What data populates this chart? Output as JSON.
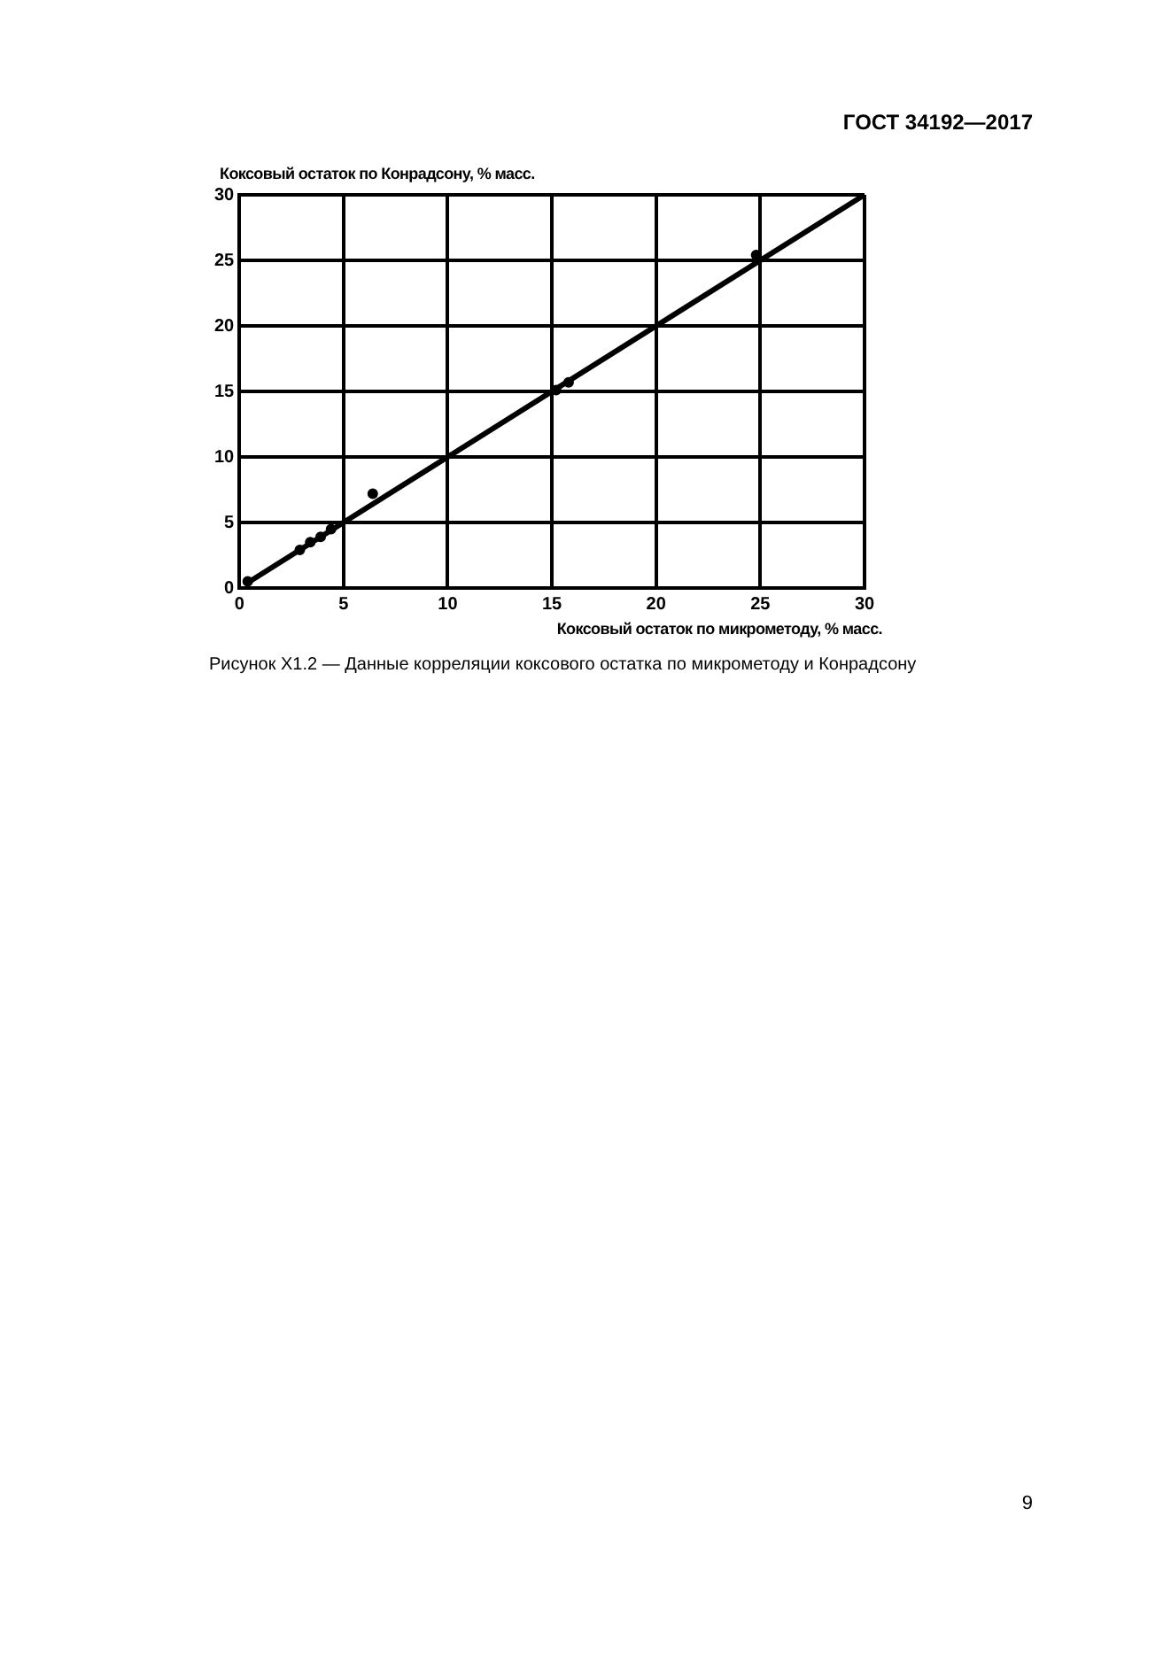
{
  "chart_data": {
    "type": "scatter",
    "xlabel": "Коксовый остаток по микрометоду, % масс.",
    "ylabel": "Коксовый остаток по Конрадсону, % масс.",
    "annotations": [
      "ГОСТ 34192—2017",
      "Рисунок X1.2 — Данные корреляции коксового остатка по микрометоду и Конрадсону",
      "9"
    ],
    "series": [
      {
        "color": "#000000",
        "x": [
          0.4,
          2.9,
          3.4,
          3.9,
          4.4,
          6.4,
          15.2,
          15.8,
          24.8
        ],
        "values": [
          0.5,
          2.9,
          3.5,
          3.9,
          4.5,
          7.2,
          15.1,
          15.7,
          25.4
        ]
      },
      {
        "type": "line",
        "color": "#000000",
        "x": [
          0.4,
          30
        ],
        "values": [
          0.4,
          30
        ],
        "marker": "none"
      }
    ],
    "xlim": [
      0,
      30
    ],
    "xticks": [
      0,
      5,
      10,
      15,
      20,
      25,
      30
    ],
    "ylim": [
      0,
      30
    ],
    "yticks": [
      0,
      5,
      10,
      15,
      20,
      25,
      30
    ],
    "grid": true,
    "marker": "circle"
  }
}
